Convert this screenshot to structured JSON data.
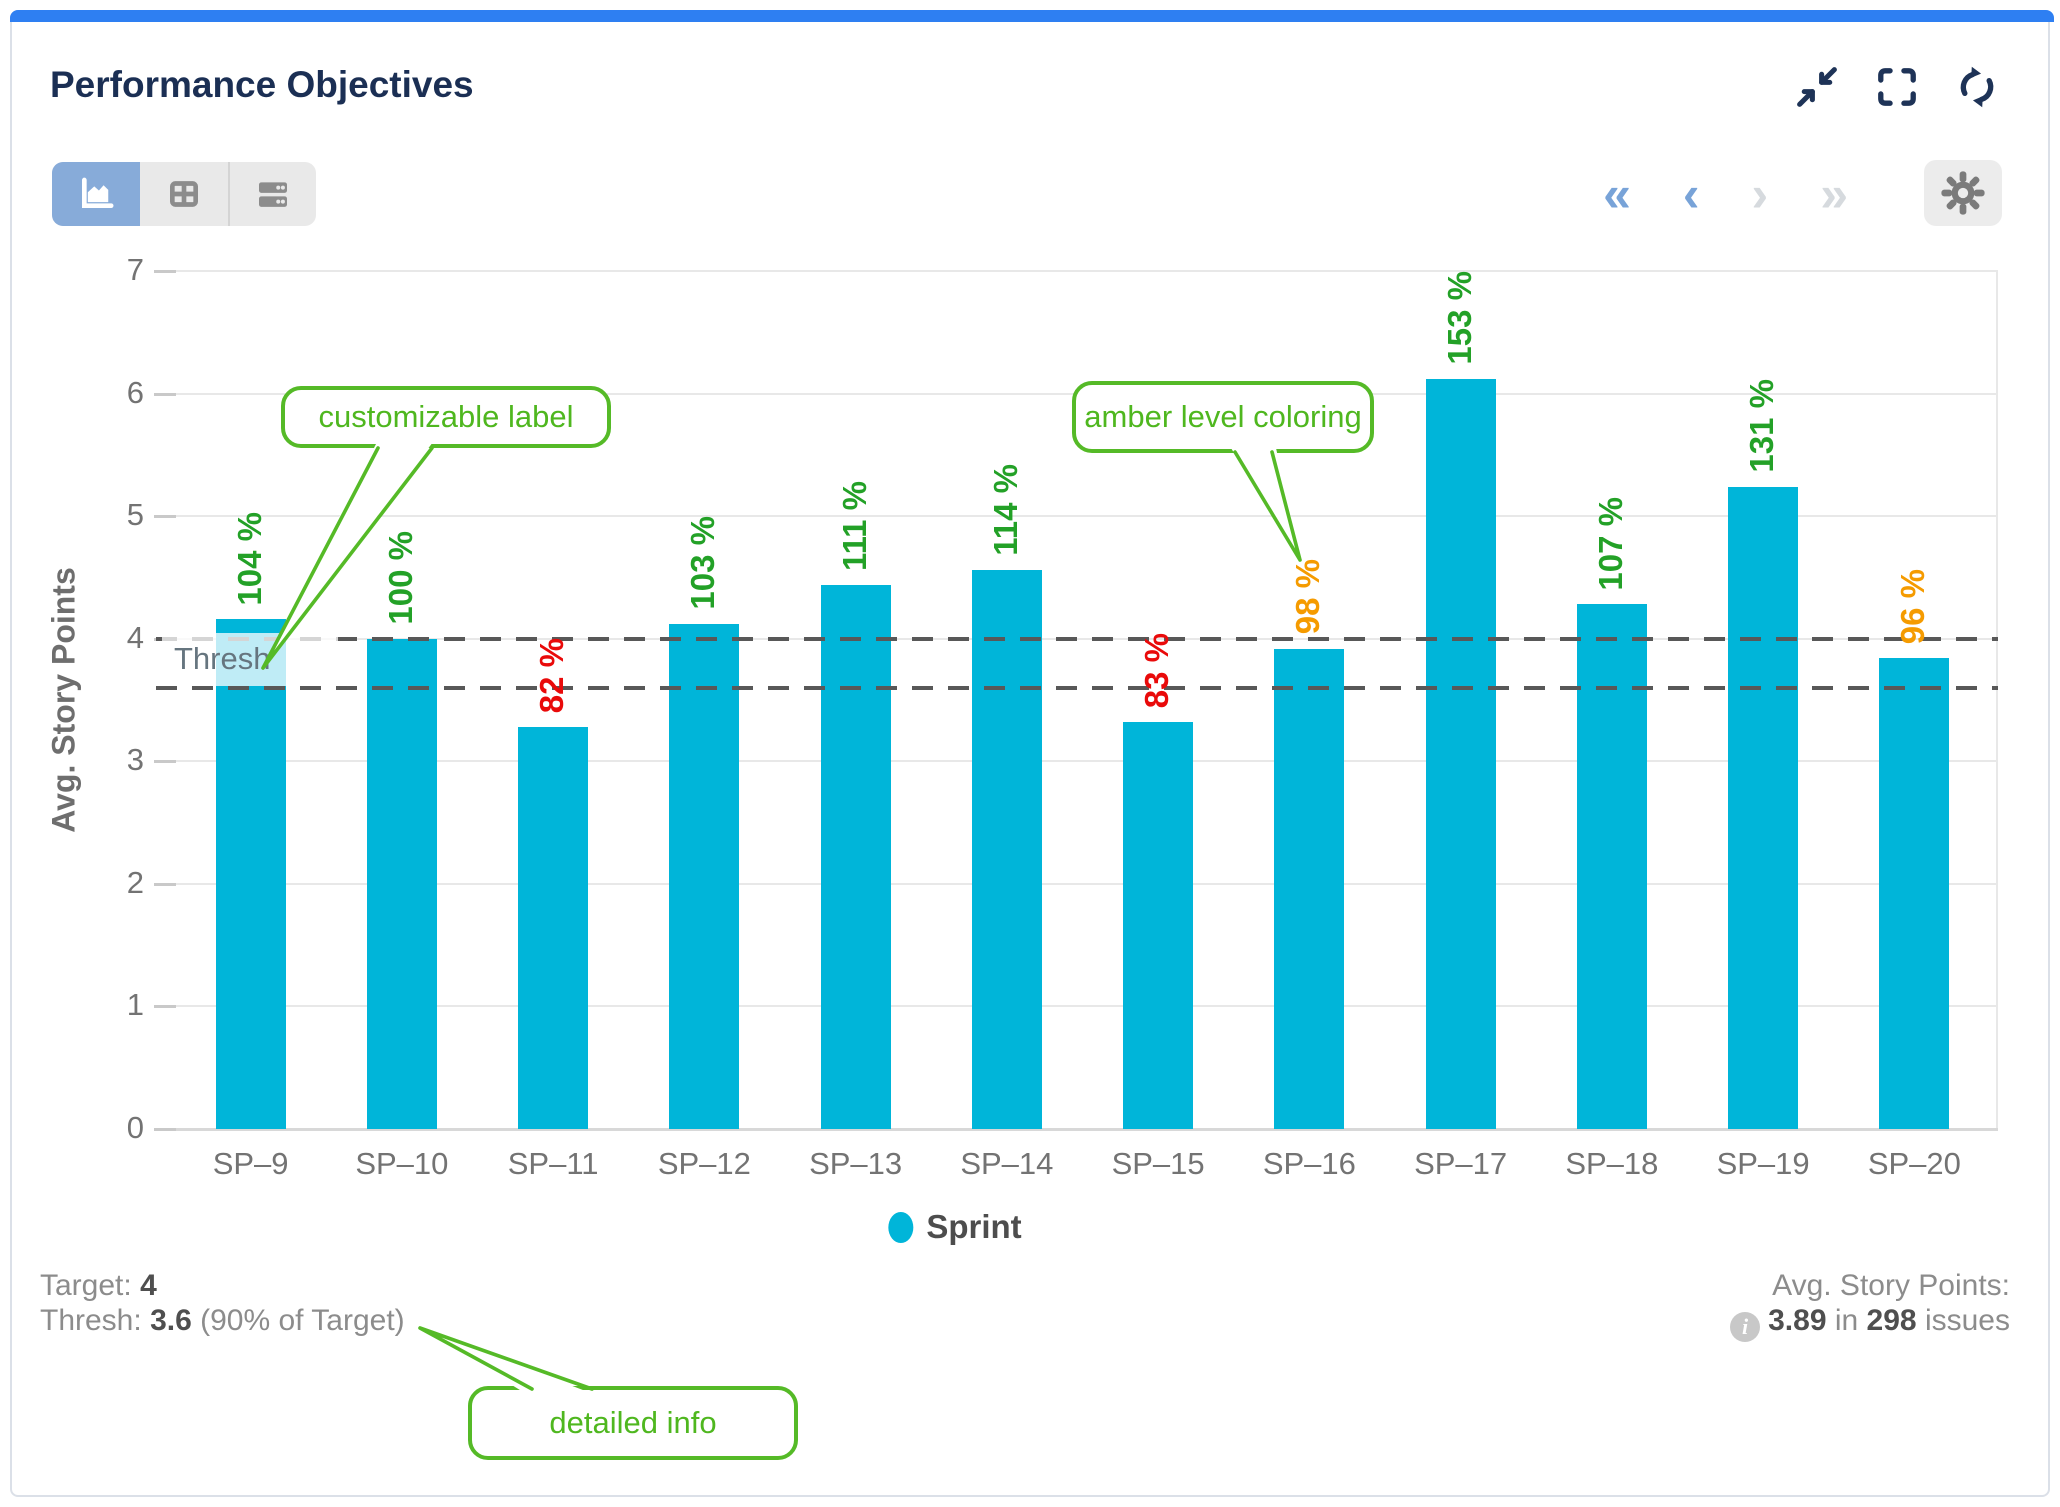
{
  "header": {
    "title": "Performance Objectives",
    "window_controls": [
      {
        "icon": "compress-icon"
      },
      {
        "icon": "fullscreen-icon"
      },
      {
        "icon": "refresh-icon"
      }
    ]
  },
  "toolbar": {
    "view_buttons": [
      {
        "icon": "area-chart-view-icon",
        "active": true
      },
      {
        "icon": "table-view-icon",
        "active": false
      },
      {
        "icon": "list-view-icon",
        "active": false
      }
    ],
    "pagination": {
      "first": "«",
      "prev": "‹",
      "next": "›",
      "last": "»"
    },
    "settings_icon": "gear-icon"
  },
  "chart_data": {
    "type": "bar",
    "title": "Performance Objectives",
    "categories": [
      "SP–9",
      "SP–10",
      "SP–11",
      "SP–12",
      "SP–13",
      "SP–14",
      "SP–15",
      "SP–16",
      "SP–17",
      "SP–18",
      "SP–19",
      "SP–20"
    ],
    "series": [
      {
        "name": "Sprint",
        "values": [
          4.16,
          4.0,
          3.28,
          4.12,
          4.44,
          4.56,
          3.32,
          3.92,
          6.12,
          4.28,
          5.24,
          3.84
        ]
      }
    ],
    "bar_labels": [
      "104 %",
      "100 %",
      "82 %",
      "103 %",
      "111 %",
      "114 %",
      "83 %",
      "98 %",
      "153 %",
      "107 %",
      "131 %",
      "96 %"
    ],
    "bar_label_levels": [
      "green",
      "green",
      "red",
      "green",
      "green",
      "green",
      "red",
      "amber",
      "green",
      "green",
      "green",
      "amber"
    ],
    "label_colors": {
      "green": "#23a127",
      "red": "#e90a0a",
      "amber": "#f59b00"
    },
    "bar_color": "#00b5d9",
    "ylabel": "Avg. Story Points",
    "xlabel": "",
    "ylim": [
      0,
      7
    ],
    "yticks": [
      0,
      1,
      2,
      3,
      4,
      5,
      6,
      7
    ],
    "grid": true,
    "legend_position": "bottom",
    "target_line": 4,
    "thresh_line": 3.6,
    "thresh_label": "Thresh"
  },
  "callouts": {
    "customizable": {
      "text": "customizable label"
    },
    "amber": {
      "text": "amber level coloring"
    },
    "detailed": {
      "text": "detailed info"
    },
    "border_color": "#55ba27"
  },
  "footer": {
    "left": {
      "target_label": "Target:",
      "target_value": "4",
      "thresh_label": "Thresh:",
      "thresh_value": "3.6",
      "thresh_note": "(90% of Target)"
    },
    "right": {
      "label": "Avg. Story Points:",
      "info_icon": "info-icon",
      "value": "3.89",
      "in_word": "in",
      "count": "298",
      "issues_word": "issues"
    }
  }
}
